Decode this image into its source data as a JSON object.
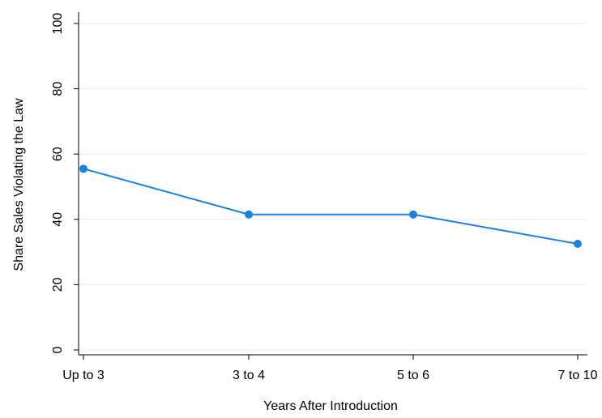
{
  "chart_data": {
    "type": "line",
    "categories": [
      "Up to 3",
      "3 to 4",
      "5 to 6",
      "7 to 10"
    ],
    "series": [
      {
        "values": [
          55.5,
          41.5,
          41.5,
          32.5
        ]
      }
    ],
    "xlabel": "Years After Introduction",
    "ylabel": "Share Sales Violating the Law",
    "ylim": [
      0,
      100
    ],
    "yticks": [
      "0",
      "20",
      "40",
      "60",
      "80",
      "100"
    ],
    "grid": true,
    "color": "#1a81e0"
  }
}
